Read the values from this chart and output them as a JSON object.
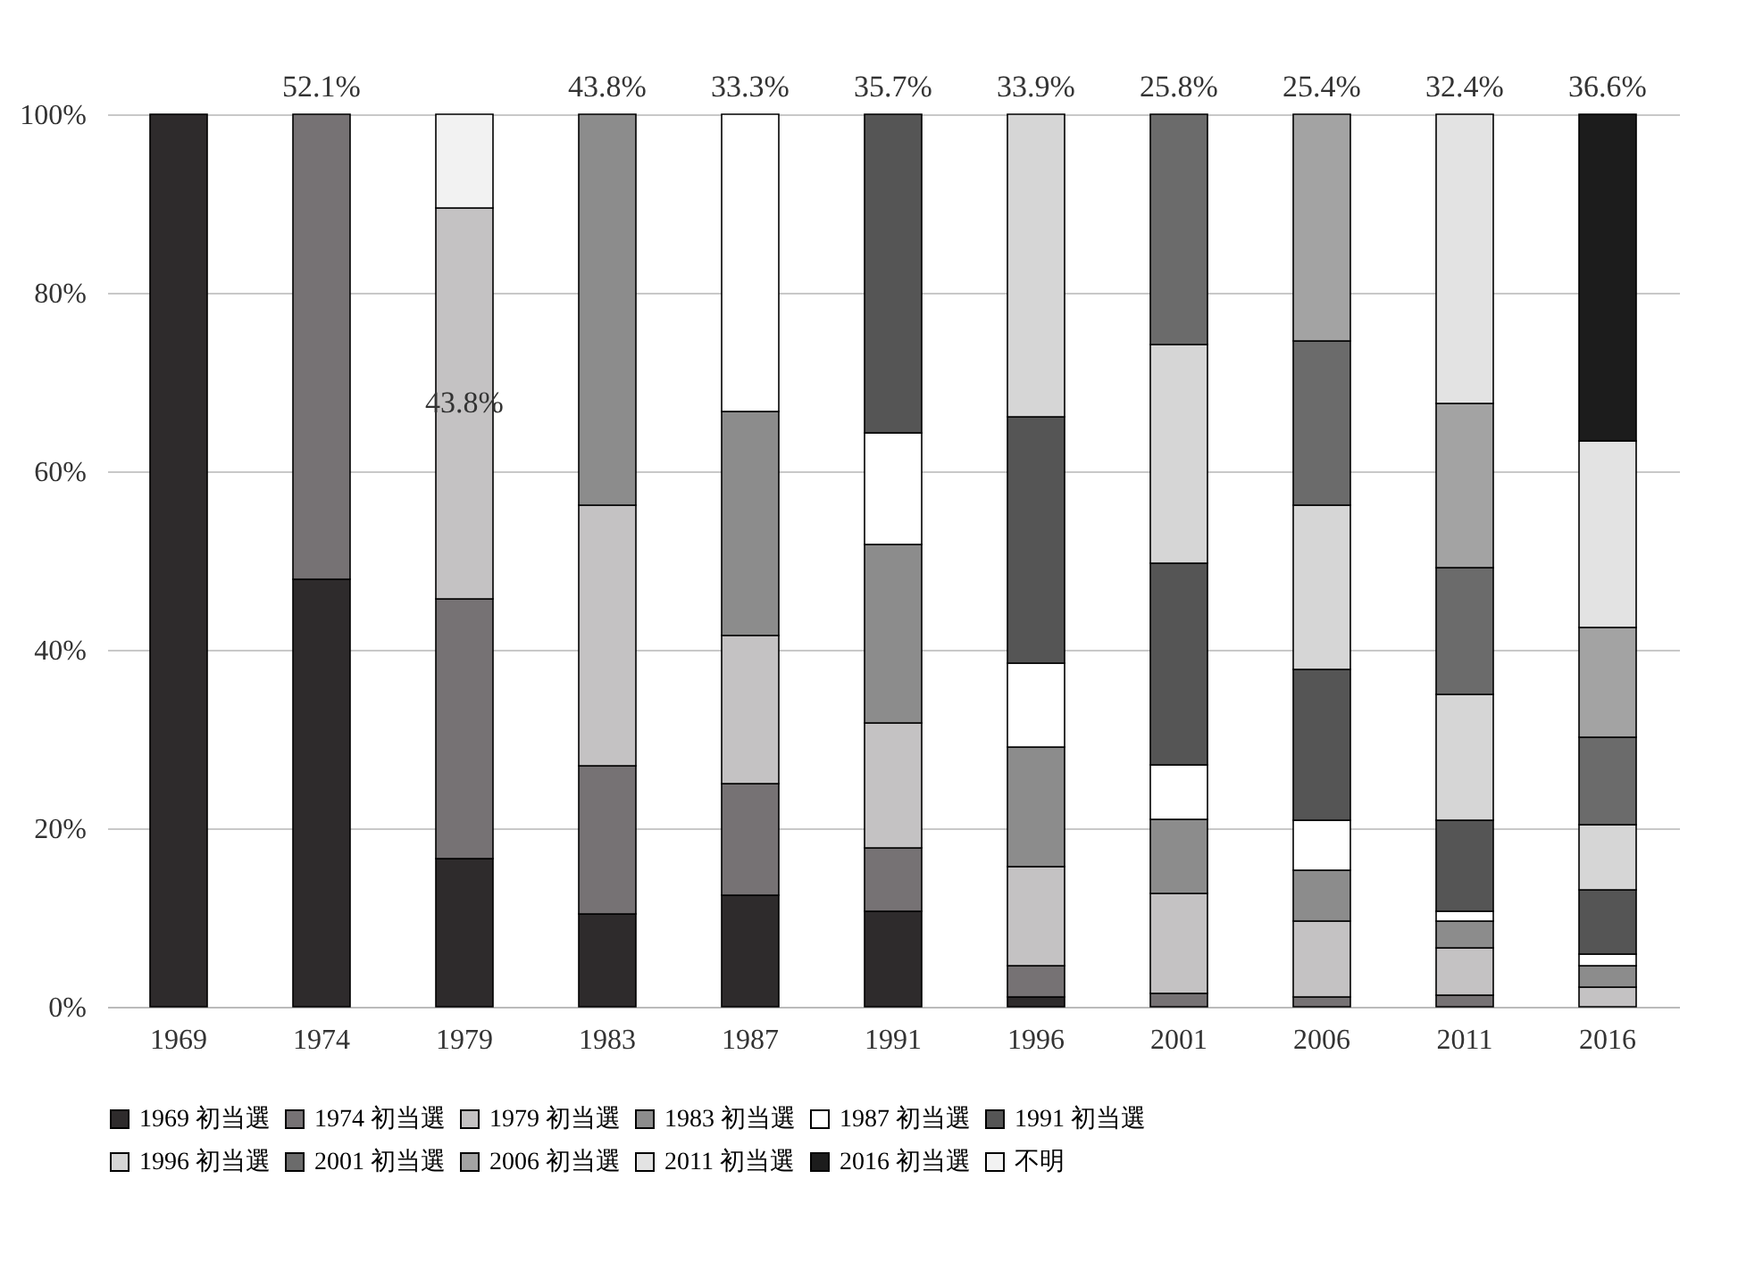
{
  "chart_data": {
    "type": "bar",
    "stacked": true,
    "categories": [
      "1969",
      "1974",
      "1979",
      "1983",
      "1987",
      "1991",
      "1996",
      "2001",
      "2006",
      "2011",
      "2016"
    ],
    "series": [
      {
        "name": "1969 初当選",
        "color": "#2e2b2c",
        "values": [
          100,
          47.9,
          16.6,
          10.4,
          12.5,
          10.7,
          1.1,
          null,
          null,
          null,
          null
        ]
      },
      {
        "name": "1974 初当選",
        "color": "#767274",
        "values": [
          null,
          52.1,
          29.1,
          16.6,
          12.5,
          7.1,
          3.5,
          1.5,
          1.1,
          1.3,
          null
        ],
        "value_labels": [
          null,
          "52.1%",
          null,
          null,
          null,
          null,
          null,
          null,
          null,
          null,
          null
        ]
      },
      {
        "name": "1979 初当選",
        "color": "#c4c2c3",
        "values": [
          null,
          null,
          43.8,
          29.2,
          16.6,
          14.0,
          11.1,
          11.2,
          8.5,
          5.3,
          2.2
        ],
        "value_labels": [
          null,
          null,
          "43.8%",
          null,
          null,
          null,
          null,
          null,
          null,
          null,
          null
        ]
      },
      {
        "name": "1983 初当選",
        "color": "#8c8c8c",
        "values": [
          null,
          null,
          null,
          43.8,
          25.1,
          20.0,
          13.4,
          8.3,
          5.7,
          3.0,
          2.4
        ],
        "value_labels": [
          null,
          null,
          null,
          "43.8%",
          null,
          null,
          null,
          null,
          null,
          null,
          null
        ]
      },
      {
        "name": "1987 初当選",
        "color": "#ffffff",
        "values": [
          null,
          null,
          null,
          null,
          33.3,
          12.5,
          9.4,
          6.1,
          5.6,
          1.1,
          1.3
        ],
        "value_labels": [
          null,
          null,
          null,
          null,
          "33.3%",
          null,
          null,
          null,
          null,
          null,
          null
        ]
      },
      {
        "name": "1991 初当選",
        "color": "#555555",
        "values": [
          null,
          null,
          null,
          null,
          null,
          35.7,
          27.6,
          22.6,
          16.9,
          10.2,
          7.2
        ],
        "value_labels": [
          null,
          null,
          null,
          null,
          null,
          "35.7%",
          null,
          null,
          null,
          null,
          null
        ]
      },
      {
        "name": "1996 初当選",
        "color": "#d6d6d6",
        "values": [
          null,
          null,
          null,
          null,
          null,
          null,
          33.9,
          24.5,
          18.4,
          14.1,
          7.3
        ],
        "value_labels": [
          null,
          null,
          null,
          null,
          null,
          null,
          "33.9%",
          null,
          null,
          null,
          null
        ]
      },
      {
        "name": "2001 初当選",
        "color": "#6b6b6b",
        "values": [
          null,
          null,
          null,
          null,
          null,
          null,
          null,
          25.8,
          18.4,
          14.2,
          9.8
        ],
        "value_labels": [
          null,
          null,
          null,
          null,
          null,
          null,
          null,
          "25.8%",
          null,
          null,
          null
        ]
      },
      {
        "name": "2006 初当選",
        "color": "#a3a3a3",
        "values": [
          null,
          null,
          null,
          null,
          null,
          null,
          null,
          null,
          25.4,
          18.4,
          12.3
        ],
        "value_labels": [
          null,
          null,
          null,
          null,
          null,
          null,
          null,
          null,
          "25.4%",
          null,
          null
        ]
      },
      {
        "name": "2011 初当選",
        "color": "#e3e3e3",
        "values": [
          null,
          null,
          null,
          null,
          null,
          null,
          null,
          null,
          null,
          32.4,
          20.9
        ],
        "value_labels": [
          null,
          null,
          null,
          null,
          null,
          null,
          null,
          null,
          null,
          "32.4%",
          null
        ]
      },
      {
        "name": "2016 初当選",
        "color": "#1c1c1c",
        "values": [
          null,
          null,
          null,
          null,
          null,
          null,
          null,
          null,
          null,
          null,
          36.6
        ],
        "value_labels": [
          null,
          null,
          null,
          null,
          null,
          null,
          null,
          null,
          null,
          null,
          "36.6%"
        ]
      },
      {
        "name": "不明",
        "color": "#f2f2f2",
        "values": [
          null,
          null,
          10.5,
          null,
          null,
          null,
          null,
          null,
          null,
          null,
          null
        ]
      }
    ],
    "ylim": [
      0,
      100
    ],
    "yticks": [
      {
        "value": 0,
        "label": "0%"
      },
      {
        "value": 20,
        "label": "20%"
      },
      {
        "value": 40,
        "label": "40%"
      },
      {
        "value": 60,
        "label": "60%"
      },
      {
        "value": 80,
        "label": "80%"
      },
      {
        "value": 100,
        "label": "100%"
      }
    ],
    "grid": "y",
    "legend": "bottom"
  }
}
